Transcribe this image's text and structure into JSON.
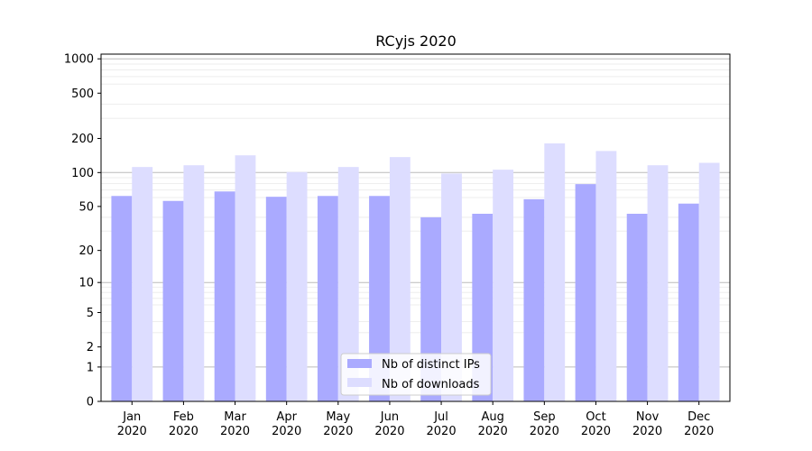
{
  "chart_data": {
    "type": "bar",
    "title": "RCyjs 2020",
    "xlabel": "",
    "ylabel": "",
    "yscale": "log1p",
    "ylim": [
      0,
      1100
    ],
    "yticks": [
      0,
      1,
      2,
      5,
      10,
      20,
      50,
      100,
      200,
      500,
      1000
    ],
    "categories": [
      [
        "Jan",
        "2020"
      ],
      [
        "Feb",
        "2020"
      ],
      [
        "Mar",
        "2020"
      ],
      [
        "Apr",
        "2020"
      ],
      [
        "May",
        "2020"
      ],
      [
        "Jun",
        "2020"
      ],
      [
        "Jul",
        "2020"
      ],
      [
        "Aug",
        "2020"
      ],
      [
        "Sep",
        "2020"
      ],
      [
        "Oct",
        "2020"
      ],
      [
        "Nov",
        "2020"
      ],
      [
        "Dec",
        "2020"
      ]
    ],
    "series": [
      {
        "name": "Nb of distinct IPs",
        "color": "#aaaaff",
        "values": [
          62,
          56,
          68,
          61,
          62,
          62,
          40,
          43,
          58,
          79,
          43,
          53
        ]
      },
      {
        "name": "Nb of downloads",
        "color": "#ddddff",
        "values": [
          112,
          116,
          142,
          101,
          112,
          137,
          98,
          106,
          181,
          155,
          116,
          122
        ]
      }
    ],
    "grid": true,
    "legend": "lower-center"
  }
}
